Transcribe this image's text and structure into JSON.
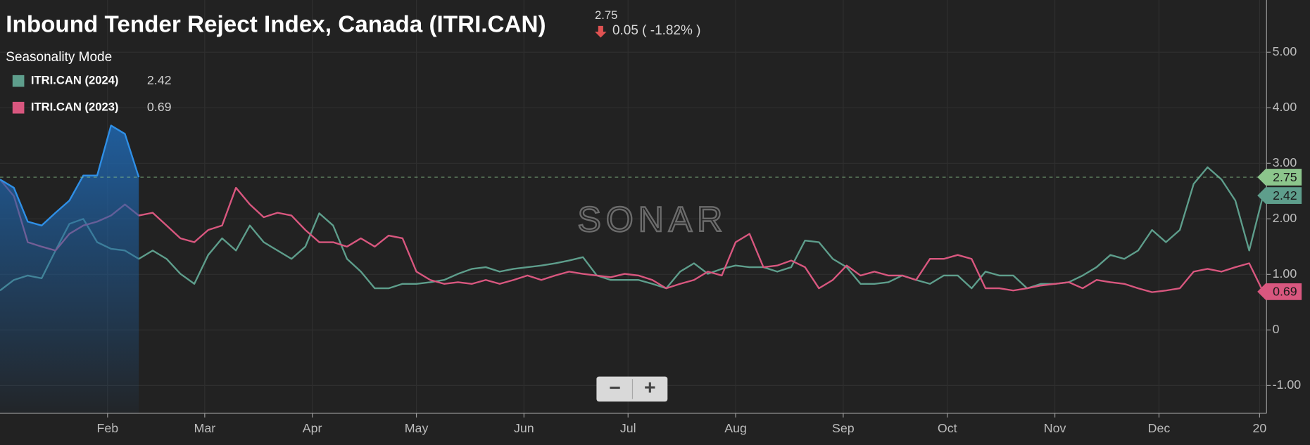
{
  "chart_data": {
    "type": "line",
    "title": "Inbound Tender Reject Index, Canada (ITRI.CAN)",
    "last_value": 2.75,
    "change_label": "0.05 ( -1.82% )",
    "mode_label": "Seasonality Mode",
    "watermark": "SONAR",
    "zoom_out": "−",
    "zoom_in": "+",
    "xlim": [
      0,
      365
    ],
    "ylim": [
      -1.5,
      5.94
    ],
    "grid": true,
    "xticks": [
      {
        "value": 31,
        "label": "Feb"
      },
      {
        "value": 59,
        "label": "Mar"
      },
      {
        "value": 90,
        "label": "Apr"
      },
      {
        "value": 120,
        "label": "May"
      },
      {
        "value": 151,
        "label": "Jun"
      },
      {
        "value": 181,
        "label": "Jul"
      },
      {
        "value": 212,
        "label": "Aug"
      },
      {
        "value": 243,
        "label": "Sep"
      },
      {
        "value": 273,
        "label": "Oct"
      },
      {
        "value": 304,
        "label": "Nov"
      },
      {
        "value": 334,
        "label": "Dec"
      },
      {
        "value": 363,
        "label": "20"
      }
    ],
    "yticks": [
      {
        "value": 5,
        "label": "5.00"
      },
      {
        "value": 4,
        "label": "4.00"
      },
      {
        "value": 3,
        "label": "3.00"
      },
      {
        "value": 2,
        "label": "2.00"
      },
      {
        "value": 1,
        "label": "1.00"
      },
      0,
      {
        "value": -1,
        "label": "-1.00"
      }
    ],
    "x": [
      0,
      4,
      8,
      12,
      16,
      20,
      24,
      28,
      32,
      36,
      40,
      44,
      48,
      52,
      56,
      60,
      64,
      68,
      72,
      76,
      80,
      84,
      88,
      92,
      96,
      100,
      104,
      108,
      112,
      116,
      120,
      124,
      128,
      132,
      136,
      140,
      144,
      148,
      152,
      156,
      160,
      164,
      168,
      172,
      176,
      180,
      184,
      188,
      192,
      196,
      200,
      204,
      208,
      212,
      216,
      220,
      224,
      228,
      232,
      236,
      240,
      244,
      248,
      252,
      256,
      260,
      264,
      268,
      272,
      276,
      280,
      284,
      288,
      292,
      296,
      300,
      304,
      308,
      312,
      316,
      320,
      324,
      328,
      332,
      336,
      340,
      344,
      348,
      352,
      356,
      360,
      364
    ],
    "series": [
      {
        "name": "ITRI.CAN (2024)",
        "color": "#5e9e8c",
        "values": [
          0.71,
          0.9,
          0.98,
          0.93,
          1.43,
          1.91,
          2.0,
          1.58,
          1.46,
          1.43,
          1.28,
          1.43,
          1.28,
          1.01,
          0.83,
          1.35,
          1.65,
          1.43,
          1.88,
          1.58,
          1.43,
          1.28,
          1.5,
          2.1,
          1.88,
          1.28,
          1.05,
          0.75,
          0.75,
          0.83,
          0.83,
          0.86,
          0.9,
          1.01,
          1.1,
          1.13,
          1.05,
          1.1,
          1.13,
          1.16,
          1.2,
          1.25,
          1.31,
          0.98,
          0.9,
          0.9,
          0.9,
          0.83,
          0.75,
          1.05,
          1.2,
          1.01,
          1.1,
          1.16,
          1.13,
          1.13,
          1.05,
          1.13,
          1.61,
          1.58,
          1.28,
          1.13,
          0.83,
          0.83,
          0.86,
          0.98,
          0.9,
          0.83,
          0.98,
          0.98,
          0.75,
          1.05,
          0.98,
          0.98,
          0.75,
          0.83,
          0.83,
          0.86,
          0.98,
          1.13,
          1.35,
          1.28,
          1.43,
          1.8,
          1.58,
          1.8,
          2.63,
          2.93,
          2.71,
          2.33,
          1.43,
          2.42
        ]
      },
      {
        "name": "ITRI.CAN (2023)",
        "color": "#d9577f",
        "values": [
          2.71,
          2.41,
          1.58,
          1.5,
          1.43,
          1.73,
          1.88,
          1.95,
          2.06,
          2.26,
          2.06,
          2.11,
          1.88,
          1.65,
          1.58,
          1.8,
          1.88,
          2.56,
          2.26,
          2.03,
          2.11,
          2.06,
          1.8,
          1.58,
          1.58,
          1.5,
          1.65,
          1.5,
          1.7,
          1.65,
          1.05,
          0.9,
          0.83,
          0.86,
          0.83,
          0.9,
          0.83,
          0.9,
          0.98,
          0.9,
          0.98,
          1.05,
          1.01,
          0.98,
          0.95,
          1.01,
          0.98,
          0.9,
          0.75,
          0.83,
          0.9,
          1.05,
          0.98,
          1.58,
          1.73,
          1.13,
          1.16,
          1.25,
          1.13,
          0.75,
          0.9,
          1.16,
          0.98,
          1.05,
          0.98,
          0.98,
          0.9,
          1.28,
          1.28,
          1.35,
          1.28,
          0.75,
          0.75,
          0.71,
          0.75,
          0.8,
          0.83,
          0.86,
          0.75,
          0.9,
          0.86,
          0.83,
          0.75,
          0.68,
          0.71,
          0.75,
          1.05,
          1.1,
          1.05,
          1.13,
          1.2,
          0.69
        ]
      },
      {
        "color": "#2f8fe6",
        "area": true,
        "values": [
          2.71,
          2.56,
          1.95,
          1.88,
          2.11,
          2.33,
          2.78,
          2.78,
          3.68,
          3.53,
          2.75,
          null,
          null,
          null,
          null,
          null,
          null,
          null,
          null,
          null,
          null,
          null,
          null,
          null,
          null,
          null,
          null,
          null,
          null,
          null,
          null,
          null,
          null,
          null,
          null,
          null,
          null,
          null,
          null,
          null,
          null,
          null,
          null,
          null,
          null,
          null,
          null,
          null,
          null,
          null,
          null,
          null,
          null,
          null,
          null,
          null,
          null,
          null,
          null,
          null,
          null,
          null,
          null,
          null,
          null,
          null,
          null,
          null,
          null,
          null,
          null,
          null,
          null,
          null,
          null,
          null,
          null,
          null,
          null,
          null,
          null,
          null,
          null,
          null,
          null,
          null,
          null,
          null,
          null,
          null,
          null,
          null
        ]
      }
    ]
  }
}
